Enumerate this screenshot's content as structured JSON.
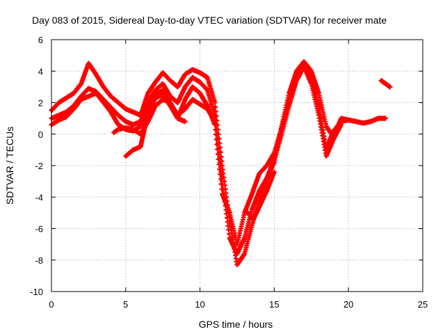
{
  "chart_data": {
    "type": "scatter",
    "title": "Day 083 of 2015, Sidereal Day-to-day VTEC variation (SDTVAR) for receiver mate",
    "xlabel": "GPS time / hours",
    "ylabel": "SDTVAR / TECUs",
    "xlim": [
      0,
      25
    ],
    "ylim": [
      -10,
      6
    ],
    "xticks": [
      "0",
      "5",
      "10",
      "15",
      "20",
      "25"
    ],
    "yticks": [
      "6",
      "4",
      "2",
      "0",
      "-2",
      "-4",
      "-6",
      "-8",
      "-10"
    ],
    "grid": true,
    "legend": "none",
    "marker": "plus",
    "color": "#ff0000",
    "series": [
      {
        "x": [
          0,
          0.5,
          1,
          1.5,
          2,
          2.5,
          3,
          3.5,
          4,
          4.5,
          5,
          5.5,
          6,
          6.5,
          7,
          7.5,
          8,
          8.5,
          9,
          9.5,
          10,
          10.5,
          11,
          11.5,
          12,
          12.5,
          13,
          13.5,
          14,
          14.5,
          15,
          15.5,
          16,
          16.5,
          17,
          17.5,
          18,
          18.5,
          19,
          19.5,
          20,
          20.5,
          21,
          21.5,
          22,
          22.5
        ],
        "y": [
          1.5,
          2.0,
          2.3,
          2.6,
          3.2,
          4.5,
          3.8,
          3.0,
          2.4,
          2.0,
          1.6,
          1.4,
          1.2,
          2.6,
          3.3,
          3.9,
          3.4,
          3.0,
          3.8,
          4.1,
          3.9,
          3.6,
          2.0,
          -2.0,
          -5.5,
          -8.3,
          -7.6,
          -5.8,
          -4.2,
          -2.8,
          -1.8,
          0.5,
          2.6,
          4.0,
          4.6,
          4.0,
          2.6,
          0.5,
          -0.2,
          1.0,
          0.9,
          0.8,
          0.7,
          0.8,
          1.0,
          1.0
        ]
      },
      {
        "x": [
          0,
          0.5,
          1,
          1.5,
          2,
          2.5,
          3,
          3.5,
          4,
          4.5,
          5,
          5.5,
          6,
          6.5,
          7,
          7.5,
          8,
          8.5,
          9,
          9.5,
          10,
          10.5,
          11,
          11.5,
          12,
          12.5,
          13,
          13.5,
          14,
          14.5,
          15,
          15.5,
          16,
          16.5,
          17,
          17.5,
          18,
          18.5,
          19,
          19.5,
          20
        ],
        "y": [
          1.0,
          1.2,
          1.4,
          1.8,
          2.4,
          2.9,
          2.7,
          2.2,
          1.7,
          1.2,
          0.8,
          0.6,
          0.8,
          2.0,
          2.8,
          3.2,
          2.4,
          2.0,
          3.0,
          3.6,
          3.3,
          2.8,
          1.2,
          -3.0,
          -6.6,
          -7.6,
          -6.6,
          -4.8,
          -3.6,
          -2.8,
          -1.6,
          0.0,
          1.8,
          3.4,
          4.3,
          3.6,
          1.8,
          -0.9,
          0.2,
          0.8,
          0.9
        ]
      },
      {
        "x": [
          0,
          0.5,
          1,
          1.5,
          2,
          3,
          4,
          4.5,
          5,
          5.5,
          6,
          6.5,
          7,
          7.5,
          8,
          8.5,
          9,
          9.5,
          10,
          10.5,
          11,
          11.5,
          12,
          12.5,
          13,
          13.5,
          14,
          14.5,
          15,
          15.5,
          16,
          16.5,
          17,
          17.5,
          18,
          18.5,
          19,
          19.5
        ],
        "y": [
          0.6,
          0.9,
          1.1,
          1.6,
          2.2,
          2.6,
          1.4,
          0.6,
          0.3,
          0.2,
          0.5,
          1.5,
          2.5,
          2.8,
          2.0,
          1.0,
          2.2,
          3.0,
          2.6,
          1.8,
          0.6,
          -3.8,
          -5.0,
          -7.0,
          -5.0,
          -3.8,
          -2.5,
          -2.0,
          -1.2,
          0.4,
          2.0,
          3.6,
          4.3,
          3.2,
          1.2,
          -1.4,
          -0.3,
          0.6
        ]
      },
      {
        "x": [
          4.2,
          4.5,
          5,
          5.5,
          6,
          6.5,
          7,
          7.5,
          8,
          8.5,
          9,
          9.5,
          10,
          10.5,
          11
        ],
        "y": [
          0.1,
          0.3,
          0.4,
          0.3,
          0.0,
          0.8,
          1.8,
          2.2,
          2.0,
          1.2,
          1.6,
          2.2,
          1.9,
          1.6,
          0.8
        ]
      },
      {
        "x": [
          5,
          5.5,
          6,
          6.3,
          6.6,
          7,
          7.5,
          8,
          8.5,
          9
        ],
        "y": [
          -1.4,
          -1.0,
          -0.8,
          0.5,
          1.6,
          2.3,
          2.5,
          1.8,
          1.0,
          0.8
        ]
      },
      {
        "x": [
          13.2,
          13.6,
          14,
          14.5,
          15
        ],
        "y": [
          -5.0,
          -5.4,
          -4.6,
          -3.6,
          -2.4
        ]
      },
      {
        "x": [
          22.2,
          22.5,
          22.8
        ],
        "y": [
          3.4,
          3.2,
          3.0
        ]
      }
    ]
  }
}
